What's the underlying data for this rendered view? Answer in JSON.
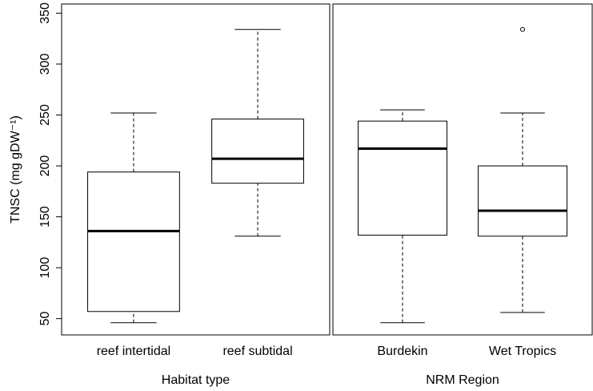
{
  "chart_data": [
    {
      "type": "box",
      "y_label": "TNSC (mg gDW⁻¹)",
      "x_label": "Habitat type",
      "ylim": [
        34,
        359
      ],
      "yticks": [
        50,
        100,
        150,
        200,
        250,
        300,
        350
      ],
      "categories": [
        "reef intertidal",
        "reef subtidal"
      ],
      "stats": [
        {
          "whisker_low": 46,
          "q1": 57,
          "median": 136,
          "q3": 194,
          "whisker_high": 252
        },
        {
          "whisker_low": 131,
          "q1": 183,
          "median": 207,
          "q3": 246,
          "whisker_high": 334
        }
      ]
    },
    {
      "type": "box",
      "x_label": "NRM Region",
      "ylim": [
        34,
        359
      ],
      "categories": [
        "Burdekin",
        "Wet Tropics"
      ],
      "stats": [
        {
          "whisker_low": 46,
          "q1": 132,
          "median": 217,
          "q3": 244,
          "whisker_high": 255
        },
        {
          "whisker_low": 56,
          "q1": 131,
          "median": 156,
          "q3": 200,
          "whisker_high": 252,
          "outliers": [
            334
          ]
        }
      ]
    }
  ]
}
